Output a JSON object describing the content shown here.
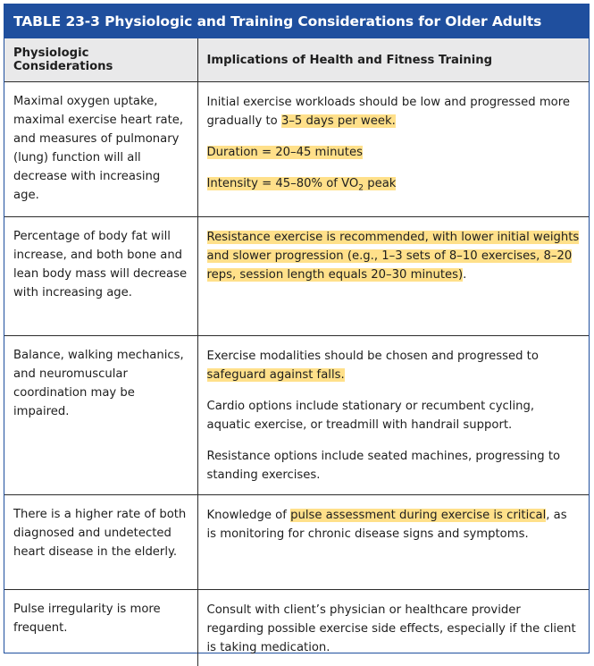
{
  "table": {
    "title": "TABLE 23-3 Physiologic and Training Considerations for Older Adults",
    "headers": {
      "col1": "Physiologic Considerations",
      "col2": "Implications of Health and Fitness Training"
    },
    "rows": [
      {
        "consideration": "Maximal oxygen uptake, maximal exercise heart rate, and measures of pulmonary (lung) function will all decrease with increasing age.",
        "implications": {
          "p1_pre": "Initial exercise workloads should be low and progressed more gradually to ",
          "p1_hl": "3–5 days per week.",
          "p2_hl": "Duration = 20–45 minutes",
          "p3_hl_pre": "Intensity = 45–80% of VO",
          "p3_sub": "2",
          "p3_hl_post": " peak"
        }
      },
      {
        "consideration": "Percentage of body fat will increase, and both bone and lean body mass will decrease with increasing age.",
        "implications": {
          "p1_hl": "Resistance exercise is recommended, with lower initial weights and slower progression (e.g., 1–3 sets of 8–10 exercises, 8–20 reps, session length equals 20–30 minutes)",
          "p1_post": "."
        }
      },
      {
        "consideration": "Balance, walking mechanics, and neuromuscular coordination may be impaired.",
        "implications": {
          "p1_pre": "Exercise modalities should be chosen and progressed to ",
          "p1_hl": "safeguard against falls.",
          "p2": "Cardio options include stationary or recumbent cycling, aquatic exercise, or treadmill with handrail support.",
          "p3": "Resistance options include seated machines, progressing to standing exercises."
        }
      },
      {
        "consideration": "There is a higher rate of both diagnosed and undetected heart disease in the elderly.",
        "implications": {
          "p1_pre": "Knowledge of ",
          "p1_hl": "pulse assessment during exercise is critical",
          "p1_post": ", as is monitoring for chronic disease signs and symptoms."
        }
      },
      {
        "consideration": "Pulse irregularity is more frequent.",
        "implications": {
          "p1": "Consult with client’s physician or healthcare provider regarding possible exercise side effects, especially if the client is taking medication."
        }
      }
    ],
    "colors": {
      "title_bar": "#1f4f9e",
      "header_bg": "#e9e9ea",
      "highlight": "#ffe08a"
    }
  }
}
